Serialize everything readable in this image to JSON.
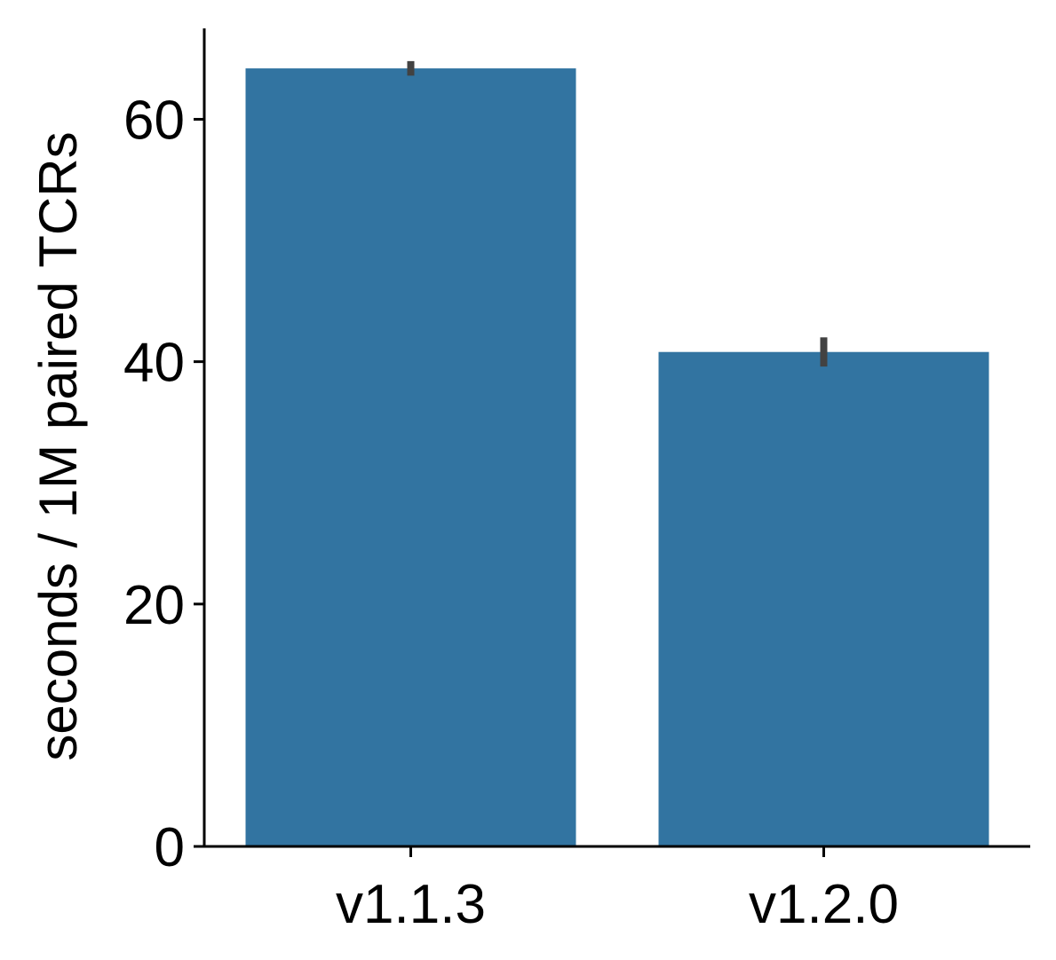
{
  "chart_data": {
    "type": "bar",
    "title": "",
    "xlabel": "",
    "ylabel": "seconds / 1M paired TCRs",
    "categories": [
      "v1.1.3",
      "v1.2.0"
    ],
    "values": [
      64.2,
      40.8
    ],
    "error_bars": [
      {
        "low": 63.6,
        "high": 64.8
      },
      {
        "low": 39.6,
        "high": 42.0
      }
    ],
    "ylim": [
      0,
      67.5
    ],
    "yticks": [
      0,
      20,
      40,
      60
    ],
    "ytick_labels": [
      "0",
      "20",
      "40",
      "60"
    ],
    "grid": false,
    "legend": "none",
    "colors": {
      "bar": "#3274a1",
      "error_bar": "#424242",
      "axis": "#000000"
    }
  }
}
